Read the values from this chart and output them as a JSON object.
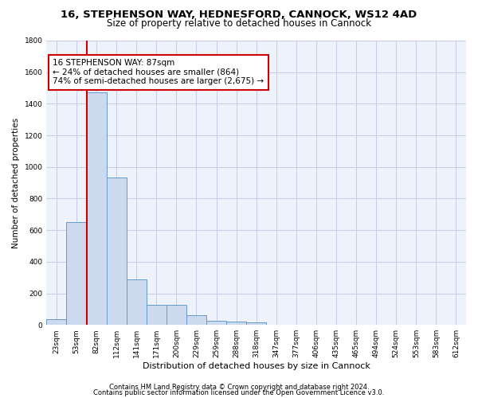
{
  "title1": "16, STEPHENSON WAY, HEDNESFORD, CANNOCK, WS12 4AD",
  "title2": "Size of property relative to detached houses in Cannock",
  "xlabel": "Distribution of detached houses by size in Cannock",
  "ylabel": "Number of detached properties",
  "bar_categories": [
    "23sqm",
    "53sqm",
    "82sqm",
    "112sqm",
    "141sqm",
    "171sqm",
    "200sqm",
    "229sqm",
    "259sqm",
    "288sqm",
    "318sqm",
    "347sqm",
    "377sqm",
    "406sqm",
    "435sqm",
    "465sqm",
    "494sqm",
    "524sqm",
    "553sqm",
    "583sqm",
    "612sqm"
  ],
  "bar_values": [
    35,
    650,
    1470,
    935,
    290,
    125,
    125,
    60,
    25,
    20,
    15,
    0,
    0,
    0,
    0,
    0,
    0,
    0,
    0,
    0,
    0
  ],
  "bar_color": "#ccd9ee",
  "bar_edge_color": "#6699cc",
  "ylim": [
    0,
    1800
  ],
  "yticks": [
    0,
    200,
    400,
    600,
    800,
    1000,
    1200,
    1400,
    1600,
    1800
  ],
  "property_bar_index": 2,
  "vline_color": "#cc0000",
  "annotation_text": "16 STEPHENSON WAY: 87sqm\n← 24% of detached houses are smaller (864)\n74% of semi-detached houses are larger (2,675) →",
  "annotation_box_color": "#cc0000",
  "footer1": "Contains HM Land Registry data © Crown copyright and database right 2024.",
  "footer2": "Contains public sector information licensed under the Open Government Licence v3.0.",
  "background_color": "#eef2fb",
  "grid_color": "#c8cfe8",
  "title1_fontsize": 9.5,
  "title2_fontsize": 8.5,
  "xlabel_fontsize": 8,
  "ylabel_fontsize": 7.5,
  "tick_fontsize": 6.5,
  "annotation_fontsize": 7.5,
  "footer_fontsize": 6
}
